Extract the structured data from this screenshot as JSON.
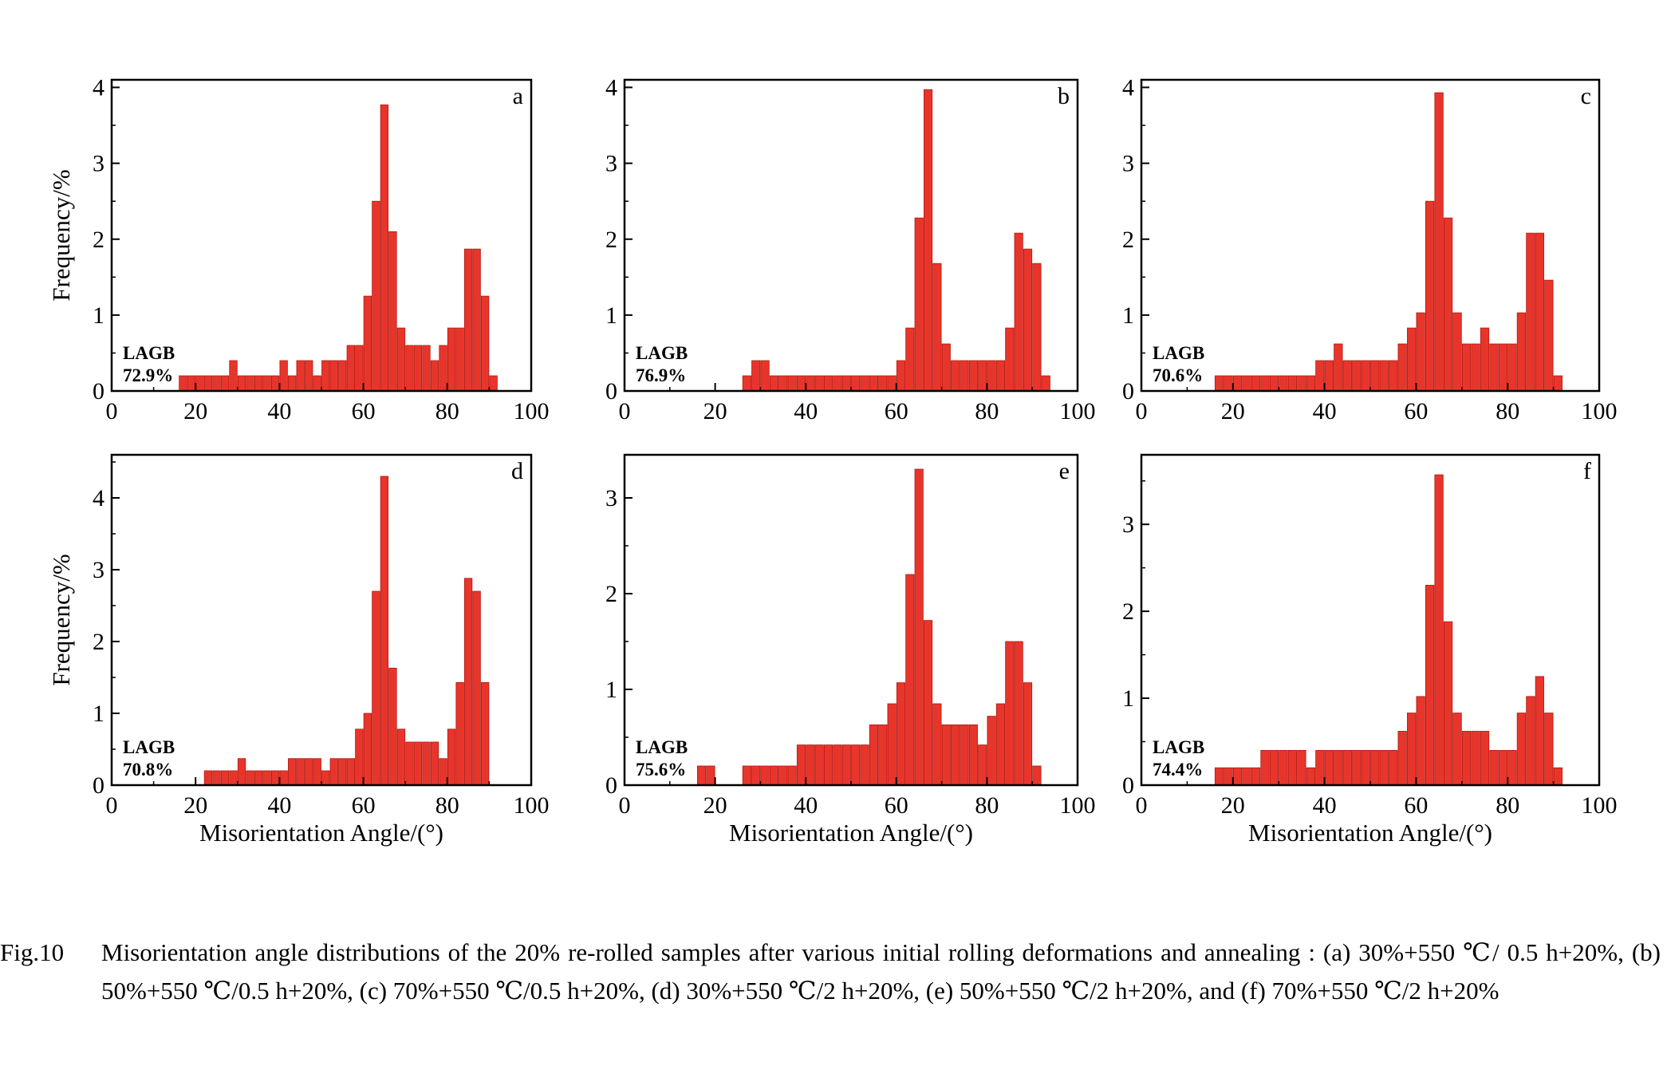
{
  "caption": {
    "number": "Fig.10",
    "text": "Misorientation angle distributions of the 20% re-rolled samples after various initial rolling deformations and annealing : (a) 30%+550 ℃/ 0.5 h+20%, (b) 50%+550 ℃/0.5 h+20%, (c) 70%+550 ℃/0.5 h+20%, (d) 30%+550 ℃/2 h+20%, (e) 50%+550 ℃/2 h+20%, and (f) 70%+550 ℃/2 h+20%"
  },
  "style": {
    "bar_color": "#e8352b",
    "bar_edge": "#b01a12",
    "axis_color": "#000000"
  },
  "chart_data": [
    {
      "panel": "a",
      "type": "bar",
      "annotation": "LAGB\n72.9%",
      "ylabel": "Frequency/%",
      "xlabel": "",
      "xlim": [
        0,
        100
      ],
      "ylim": [
        0,
        4.1
      ],
      "xticks": [
        "0",
        "20",
        "40",
        "60",
        "80",
        "100"
      ],
      "yticks": [
        "0",
        "1",
        "2",
        "3",
        "4"
      ],
      "x": [
        17,
        19,
        21,
        23,
        25,
        27,
        29,
        31,
        33,
        35,
        37,
        39,
        41,
        43,
        45,
        47,
        49,
        51,
        53,
        55,
        57,
        59,
        61,
        63,
        65,
        67,
        69,
        71,
        73,
        75,
        77,
        79,
        81,
        83,
        85,
        87,
        89,
        91
      ],
      "values": [
        0.2,
        0.2,
        0.2,
        0.2,
        0.2,
        0.2,
        0.4,
        0.2,
        0.2,
        0.2,
        0.2,
        0.2,
        0.4,
        0.2,
        0.4,
        0.4,
        0.2,
        0.4,
        0.4,
        0.4,
        0.6,
        0.6,
        1.25,
        2.5,
        3.77,
        2.1,
        0.83,
        0.6,
        0.6,
        0.6,
        0.4,
        0.6,
        0.83,
        0.83,
        1.87,
        1.87,
        1.25,
        0.2
      ]
    },
    {
      "panel": "b",
      "type": "bar",
      "annotation": "LAGB\n76.9%",
      "ylabel": "",
      "xlabel": "",
      "xlim": [
        0,
        100
      ],
      "ylim": [
        0,
        4.1
      ],
      "xticks": [
        "0",
        "20",
        "40",
        "60",
        "80",
        "100"
      ],
      "yticks": [
        "0",
        "1",
        "2",
        "3",
        "4"
      ],
      "x": [
        27,
        29,
        31,
        33,
        35,
        37,
        39,
        41,
        43,
        45,
        47,
        49,
        51,
        53,
        55,
        57,
        59,
        61,
        63,
        65,
        67,
        69,
        71,
        73,
        75,
        77,
        79,
        81,
        83,
        85,
        87,
        89,
        91,
        93
      ],
      "values": [
        0.2,
        0.4,
        0.4,
        0.2,
        0.2,
        0.2,
        0.2,
        0.2,
        0.2,
        0.2,
        0.2,
        0.2,
        0.2,
        0.2,
        0.2,
        0.2,
        0.2,
        0.4,
        0.83,
        2.28,
        3.97,
        1.68,
        0.62,
        0.4,
        0.4,
        0.4,
        0.4,
        0.4,
        0.4,
        0.83,
        2.08,
        1.87,
        1.68,
        0.2
      ]
    },
    {
      "panel": "c",
      "type": "bar",
      "annotation": "LAGB\n70.6%",
      "ylabel": "",
      "xlabel": "",
      "xlim": [
        0,
        100
      ],
      "ylim": [
        0,
        4.1
      ],
      "xticks": [
        "0",
        "20",
        "40",
        "60",
        "80",
        "100"
      ],
      "yticks": [
        "0",
        "1",
        "2",
        "3",
        "4"
      ],
      "x": [
        17,
        19,
        21,
        23,
        25,
        27,
        29,
        31,
        33,
        35,
        37,
        39,
        41,
        43,
        45,
        47,
        49,
        51,
        53,
        55,
        57,
        59,
        61,
        63,
        65,
        67,
        69,
        71,
        73,
        75,
        77,
        79,
        81,
        83,
        85,
        87,
        89,
        91
      ],
      "values": [
        0.2,
        0.2,
        0.2,
        0.2,
        0.2,
        0.2,
        0.2,
        0.2,
        0.2,
        0.2,
        0.2,
        0.4,
        0.4,
        0.62,
        0.4,
        0.4,
        0.4,
        0.4,
        0.4,
        0.4,
        0.62,
        0.83,
        1.03,
        2.5,
        3.93,
        2.28,
        1.03,
        0.62,
        0.62,
        0.83,
        0.62,
        0.62,
        0.62,
        1.03,
        2.08,
        2.08,
        1.46,
        0.2
      ]
    },
    {
      "panel": "d",
      "type": "bar",
      "annotation": "LAGB\n70.8%",
      "ylabel": "Frequency/%",
      "xlabel": "Misorientation Angle/(°)",
      "xlim": [
        0,
        100
      ],
      "ylim": [
        0,
        4.6
      ],
      "xticks": [
        "0",
        "20",
        "40",
        "60",
        "80",
        "100"
      ],
      "yticks": [
        "0",
        "1",
        "2",
        "3",
        "4"
      ],
      "x": [
        23,
        25,
        27,
        29,
        31,
        33,
        35,
        37,
        39,
        41,
        43,
        45,
        47,
        49,
        51,
        53,
        55,
        57,
        59,
        61,
        63,
        65,
        67,
        69,
        71,
        73,
        75,
        77,
        79,
        81,
        83,
        85,
        87,
        89
      ],
      "values": [
        0.2,
        0.2,
        0.2,
        0.2,
        0.37,
        0.2,
        0.2,
        0.2,
        0.2,
        0.2,
        0.37,
        0.37,
        0.37,
        0.37,
        0.2,
        0.37,
        0.37,
        0.37,
        0.78,
        1.0,
        2.7,
        4.3,
        1.63,
        0.78,
        0.6,
        0.6,
        0.6,
        0.6,
        0.37,
        0.78,
        1.43,
        2.88,
        2.7,
        1.43
      ]
    },
    {
      "panel": "e",
      "type": "bar",
      "annotation": "LAGB\n75.6%",
      "ylabel": "",
      "xlabel": "Misorientation Angle/(°)",
      "xlim": [
        0,
        100
      ],
      "ylim": [
        0,
        3.45
      ],
      "xticks": [
        "0",
        "20",
        "40",
        "60",
        "80",
        "100"
      ],
      "yticks": [
        "0",
        "1",
        "2",
        "3"
      ],
      "x": [
        17,
        19,
        27,
        29,
        31,
        33,
        35,
        37,
        39,
        41,
        43,
        45,
        47,
        49,
        51,
        53,
        55,
        57,
        59,
        61,
        63,
        65,
        67,
        69,
        71,
        73,
        75,
        77,
        79,
        81,
        83,
        85,
        87,
        89,
        91
      ],
      "values": [
        0.2,
        0.2,
        0.2,
        0.2,
        0.2,
        0.2,
        0.2,
        0.2,
        0.42,
        0.42,
        0.42,
        0.42,
        0.42,
        0.42,
        0.42,
        0.42,
        0.63,
        0.63,
        0.85,
        1.07,
        2.2,
        3.3,
        1.72,
        0.85,
        0.63,
        0.63,
        0.63,
        0.63,
        0.42,
        0.72,
        0.85,
        1.5,
        1.5,
        1.07,
        0.2
      ]
    },
    {
      "panel": "f",
      "type": "bar",
      "annotation": "LAGB\n74.4%",
      "ylabel": "",
      "xlabel": "Misorientation Angle/(°)",
      "xlim": [
        0,
        100
      ],
      "ylim": [
        0,
        3.8
      ],
      "xticks": [
        "0",
        "20",
        "40",
        "60",
        "80",
        "100"
      ],
      "yticks": [
        "0",
        "1",
        "2",
        "3"
      ],
      "x": [
        17,
        19,
        21,
        23,
        25,
        27,
        29,
        31,
        33,
        35,
        37,
        39,
        41,
        43,
        45,
        47,
        49,
        51,
        53,
        55,
        57,
        59,
        61,
        63,
        65,
        67,
        69,
        71,
        73,
        75,
        77,
        79,
        81,
        83,
        85,
        87,
        89,
        91
      ],
      "values": [
        0.2,
        0.2,
        0.2,
        0.2,
        0.2,
        0.4,
        0.4,
        0.4,
        0.4,
        0.4,
        0.2,
        0.4,
        0.4,
        0.4,
        0.4,
        0.4,
        0.4,
        0.4,
        0.4,
        0.4,
        0.62,
        0.83,
        1.02,
        2.3,
        3.57,
        1.88,
        0.83,
        0.62,
        0.62,
        0.62,
        0.4,
        0.4,
        0.4,
        0.83,
        1.02,
        1.25,
        0.83,
        0.2
      ]
    }
  ]
}
